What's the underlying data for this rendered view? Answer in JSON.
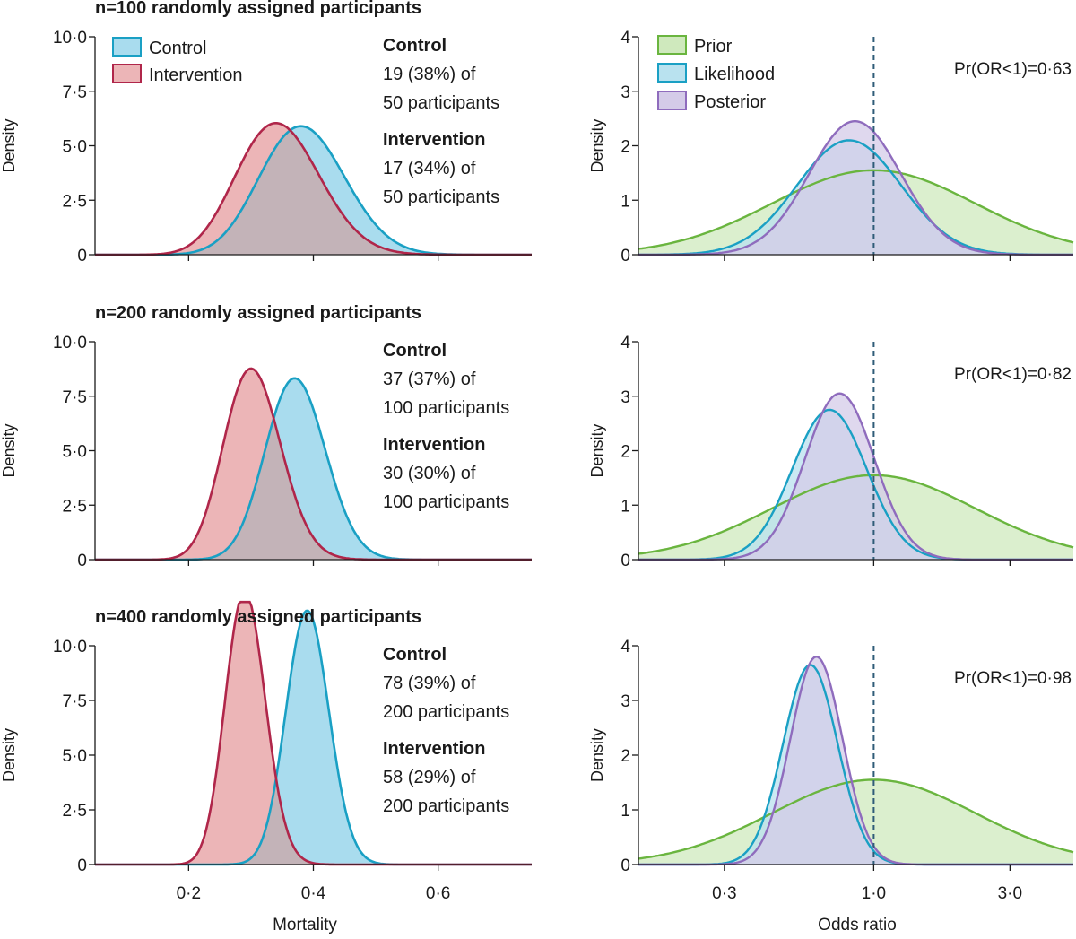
{
  "colors": {
    "control_stroke": "#1aa0c4",
    "control_fill": "#a9dcee",
    "intervention_stroke": "#b0264a",
    "intervention_fill": "#ecb5b7",
    "overlap_fill": "#c3b3b8",
    "prior_stroke": "#6ab53f",
    "prior_fill": "#cfe9bd",
    "likelihood_stroke": "#1aa0c4",
    "likelihood_fill": "#b9e2ef",
    "posterior_stroke": "#8f6cbd",
    "posterior_fill": "#d4cbe8",
    "reference_line": "#2f5c78",
    "axis": "#1a1a1a"
  },
  "legend_left": {
    "control": "Control",
    "intervention": "Intervention"
  },
  "legend_right": {
    "prior": "Prior",
    "likelihood": "Likelihood",
    "posterior": "Posterior"
  },
  "chart_data": [
    {
      "type": "area",
      "title": "n=100 randomly assigned participants",
      "xlabel": "",
      "ylabel": "Density",
      "xlim": [
        0.05,
        0.75
      ],
      "ylim": [
        0,
        10
      ],
      "x_ticks": [
        0.2,
        0.4,
        0.6
      ],
      "y_ticks": [
        {
          "value": 0,
          "label": "0"
        },
        {
          "value": 2.5,
          "label": "2·5"
        },
        {
          "value": 5,
          "label": "5·0"
        },
        {
          "value": 7.5,
          "label": "7·5"
        },
        {
          "value": 10,
          "label": "10·0"
        }
      ],
      "show_legend": true,
      "series": [
        {
          "name": "Control",
          "distribution": "beta",
          "alpha": 20,
          "beta": 32
        },
        {
          "name": "Intervention",
          "distribution": "beta",
          "alpha": 18,
          "beta": 34
        }
      ],
      "annotations": [
        {
          "heading": "Control",
          "line1": "19 (38%) of",
          "line2": "50 participants"
        },
        {
          "heading": "Intervention",
          "line1": "17 (34%) of",
          "line2": "50 participants"
        }
      ]
    },
    {
      "type": "area",
      "title": "",
      "xlabel": "",
      "ylabel": "Density",
      "x_scale": "log",
      "xlim": [
        0.15,
        5.0
      ],
      "ylim": [
        0,
        4
      ],
      "x_ticks": [
        0.3,
        1.0,
        3.0
      ],
      "y_ticks": [
        {
          "value": 0,
          "label": "0"
        },
        {
          "value": 1,
          "label": "1"
        },
        {
          "value": 2,
          "label": "2"
        },
        {
          "value": 3,
          "label": "3"
        },
        {
          "value": 4,
          "label": "4"
        }
      ],
      "reference_line": 1.0,
      "show_legend": true,
      "probability_label": "Pr(OR<1)=0·63",
      "series": [
        {
          "name": "Prior",
          "distribution": "lognormal",
          "mean_log": 0.0,
          "sd_log": 0.82,
          "peak_x": 1.0,
          "peak_density": 1.55
        },
        {
          "name": "Likelihood",
          "distribution": "lognormal",
          "mean_log": -0.2,
          "sd_log": 0.42,
          "peak_x": 0.82,
          "peak_density": 2.1
        },
        {
          "name": "Posterior",
          "distribution": "lognormal",
          "mean_log": -0.15,
          "sd_log": 0.37,
          "peak_x": 0.86,
          "peak_density": 2.45
        }
      ]
    },
    {
      "type": "area",
      "title": "n=200 randomly assigned participants",
      "xlabel": "",
      "ylabel": "Density",
      "xlim": [
        0.05,
        0.75
      ],
      "ylim": [
        0,
        10
      ],
      "x_ticks": [
        0.2,
        0.4,
        0.6
      ],
      "y_ticks": [
        {
          "value": 0,
          "label": "0"
        },
        {
          "value": 2.5,
          "label": "2·5"
        },
        {
          "value": 5,
          "label": "5·0"
        },
        {
          "value": 7.5,
          "label": "7·5"
        },
        {
          "value": 10,
          "label": "10·0"
        }
      ],
      "show_legend": false,
      "series": [
        {
          "name": "Control",
          "distribution": "beta",
          "alpha": 38,
          "beta": 64
        },
        {
          "name": "Intervention",
          "distribution": "beta",
          "alpha": 31,
          "beta": 71
        }
      ],
      "annotations": [
        {
          "heading": "Control",
          "line1": "37 (37%) of",
          "line2": "100 participants"
        },
        {
          "heading": "Intervention",
          "line1": "30 (30%) of",
          "line2": "100 participants"
        }
      ]
    },
    {
      "type": "area",
      "title": "",
      "xlabel": "",
      "ylabel": "Density",
      "x_scale": "log",
      "xlim": [
        0.15,
        5.0
      ],
      "ylim": [
        0,
        4
      ],
      "x_ticks": [
        0.3,
        1.0,
        3.0
      ],
      "y_ticks": [
        {
          "value": 0,
          "label": "0"
        },
        {
          "value": 1,
          "label": "1"
        },
        {
          "value": 2,
          "label": "2"
        },
        {
          "value": 3,
          "label": "3"
        },
        {
          "value": 4,
          "label": "4"
        }
      ],
      "reference_line": 1.0,
      "show_legend": false,
      "probability_label": "Pr(OR<1)=0·82",
      "series": [
        {
          "name": "Prior",
          "distribution": "lognormal",
          "mean_log": 0.0,
          "sd_log": 0.82,
          "peak_x": 1.0,
          "peak_density": 1.55
        },
        {
          "name": "Likelihood",
          "distribution": "lognormal",
          "mean_log": -0.36,
          "sd_log": 0.3,
          "peak_x": 0.7,
          "peak_density": 2.75
        },
        {
          "name": "Posterior",
          "distribution": "lognormal",
          "mean_log": -0.28,
          "sd_log": 0.28,
          "peak_x": 0.76,
          "peak_density": 3.05
        }
      ]
    },
    {
      "type": "area",
      "title": "n=400 randomly assigned participants",
      "xlabel": "Mortality",
      "ylabel": "Density",
      "xlim": [
        0.05,
        0.75
      ],
      "ylim": [
        0,
        10
      ],
      "x_ticks": [
        0.2,
        0.4,
        0.6
      ],
      "y_ticks": [
        {
          "value": 0,
          "label": "0"
        },
        {
          "value": 2.5,
          "label": "2·5"
        },
        {
          "value": 5,
          "label": "5·0"
        },
        {
          "value": 7.5,
          "label": "7·5"
        },
        {
          "value": 10,
          "label": "10·0"
        }
      ],
      "x_tick_labels": [
        "0·2",
        "0·4",
        "0·6"
      ],
      "show_legend": false,
      "series": [
        {
          "name": "Control",
          "distribution": "beta",
          "alpha": 79,
          "beta": 123
        },
        {
          "name": "Intervention",
          "distribution": "beta",
          "alpha": 59,
          "beta": 143
        }
      ],
      "annotations": [
        {
          "heading": "Control",
          "line1": "78 (39%) of",
          "line2": "200 participants"
        },
        {
          "heading": "Intervention",
          "line1": "58 (29%) of",
          "line2": "200 participants"
        }
      ]
    },
    {
      "type": "area",
      "title": "",
      "xlabel": "Odds ratio",
      "ylabel": "Density",
      "x_scale": "log",
      "xlim": [
        0.15,
        5.0
      ],
      "ylim": [
        0,
        4
      ],
      "x_ticks": [
        0.3,
        1.0,
        3.0
      ],
      "x_tick_labels": [
        "0·3",
        "1·0",
        "3·0"
      ],
      "y_ticks": [
        {
          "value": 0,
          "label": "0"
        },
        {
          "value": 1,
          "label": "1"
        },
        {
          "value": 2,
          "label": "2"
        },
        {
          "value": 3,
          "label": "3"
        },
        {
          "value": 4,
          "label": "4"
        }
      ],
      "reference_line": 1.0,
      "show_legend": false,
      "probability_label": "Pr(OR<1)=0·98",
      "series": [
        {
          "name": "Prior",
          "distribution": "lognormal",
          "mean_log": 0.0,
          "sd_log": 0.82,
          "peak_x": 1.0,
          "peak_density": 1.55
        },
        {
          "name": "Likelihood",
          "distribution": "lognormal",
          "mean_log": -0.48,
          "sd_log": 0.22,
          "peak_x": 0.6,
          "peak_density": 3.65
        },
        {
          "name": "Posterior",
          "distribution": "lognormal",
          "mean_log": -0.42,
          "sd_log": 0.21,
          "peak_x": 0.63,
          "peak_density": 3.8
        }
      ]
    }
  ]
}
